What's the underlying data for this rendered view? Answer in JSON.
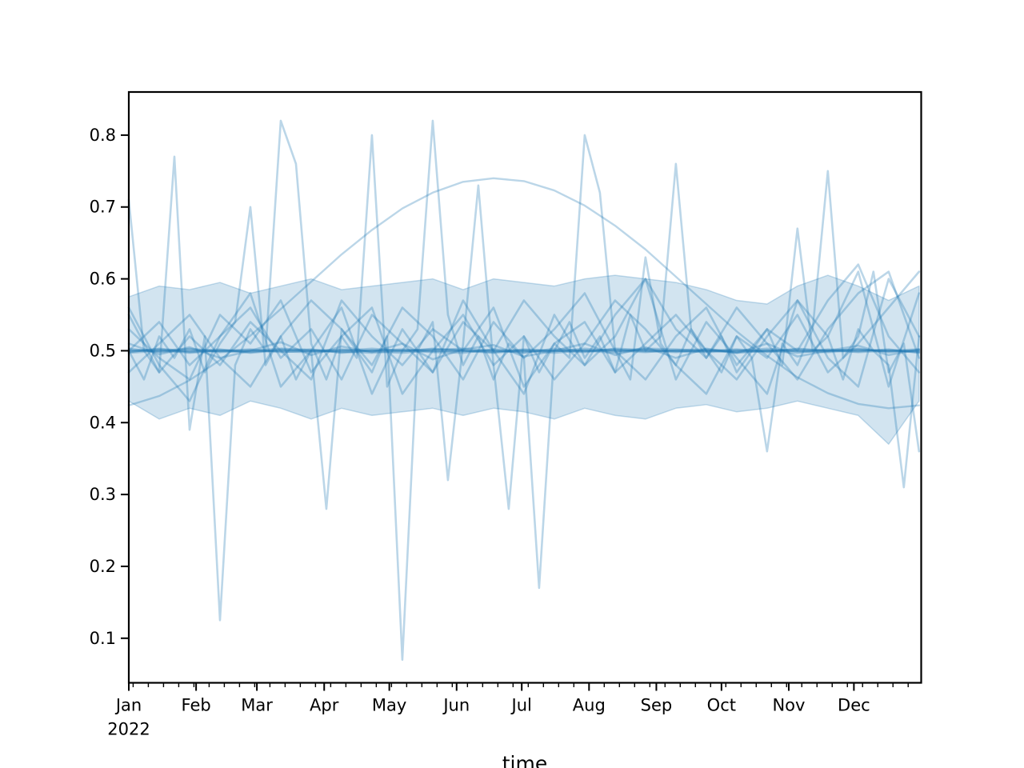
{
  "figure": {
    "background": "#ffffff",
    "axis_color": "#000000"
  },
  "chart_data": {
    "type": "line",
    "title": "",
    "xlabel": "time",
    "ylabel": "",
    "legend": "none",
    "grid": false,
    "description": "Spaghetti plot of many translucent blue time series over year 2022: a shaded uncertainty band around 0.5, several near-constant series at 0.5 forming a dark core line, volatile series with large spikes, and one smooth seasonal curve peaking near 0.74 in June.",
    "x_axis": {
      "kind": "date",
      "year_label": "2022",
      "month_labels": [
        "Jan",
        "Feb",
        "Mar",
        "Apr",
        "May",
        "Jun",
        "Jul",
        "Aug",
        "Sep",
        "Oct",
        "Nov",
        "Dec"
      ],
      "month_start_days": [
        0,
        31,
        59,
        90,
        120,
        151,
        181,
        212,
        243,
        273,
        304,
        334
      ],
      "range_days": [
        0,
        365
      ],
      "minor_tick_interval_days": 7,
      "minor_tick_phase_day": 2
    },
    "y_axis": {
      "ticks": [
        0.1,
        0.2,
        0.3,
        0.4,
        0.5,
        0.6,
        0.7,
        0.8
      ],
      "tick_decimals": 1,
      "range": [
        0.038,
        0.86
      ]
    },
    "colors": {
      "base_line": "#1f77b4",
      "line_alpha": 0.3,
      "band_fill_alpha": 0.2,
      "band_edge_alpha": 0.25
    },
    "days_weekly": [
      0,
      7,
      14,
      21,
      28,
      35,
      42,
      49,
      56,
      63,
      70,
      77,
      84,
      91,
      98,
      105,
      112,
      119,
      126,
      133,
      140,
      147,
      154,
      161,
      168,
      175,
      182,
      189,
      196,
      203,
      210,
      217,
      224,
      231,
      238,
      245,
      252,
      259,
      266,
      273,
      280,
      287,
      294,
      301,
      308,
      315,
      322,
      329,
      336,
      343,
      350,
      357,
      364
    ],
    "days_biweekly": [
      0,
      14,
      28,
      42,
      56,
      70,
      84,
      98,
      112,
      126,
      140,
      154,
      168,
      182,
      196,
      210,
      224,
      238,
      252,
      266,
      280,
      294,
      308,
      322,
      336,
      350,
      364
    ],
    "band": {
      "days_key": "days_biweekly",
      "upper": [
        0.575,
        0.59,
        0.585,
        0.595,
        0.58,
        0.59,
        0.6,
        0.585,
        0.59,
        0.595,
        0.6,
        0.585,
        0.6,
        0.595,
        0.59,
        0.6,
        0.605,
        0.6,
        0.595,
        0.585,
        0.57,
        0.565,
        0.59,
        0.605,
        0.59,
        0.57,
        0.59
      ],
      "lower": [
        0.43,
        0.405,
        0.42,
        0.41,
        0.43,
        0.42,
        0.405,
        0.42,
        0.41,
        0.415,
        0.42,
        0.41,
        0.42,
        0.415,
        0.405,
        0.42,
        0.41,
        0.405,
        0.42,
        0.425,
        0.415,
        0.42,
        0.43,
        0.42,
        0.41,
        0.37,
        0.43
      ]
    },
    "series": [
      {
        "name": "smooth-seasonal",
        "days_key": "days_biweekly",
        "width": 2.4,
        "values": [
          0.424,
          0.437,
          0.459,
          0.487,
          0.521,
          0.558,
          0.596,
          0.634,
          0.668,
          0.698,
          0.72,
          0.735,
          0.74,
          0.736,
          0.723,
          0.702,
          0.674,
          0.641,
          0.603,
          0.565,
          0.527,
          0.493,
          0.463,
          0.441,
          0.426,
          0.42,
          0.424
        ]
      },
      {
        "name": "volatile-1",
        "days_key": "days_weekly",
        "width": 2.6,
        "values": [
          0.71,
          0.5,
          0.47,
          0.77,
          0.39,
          0.52,
          0.125,
          0.48,
          0.53,
          0.5,
          0.82,
          0.76,
          0.51,
          0.46,
          0.52,
          0.49,
          0.8,
          0.45,
          0.5,
          0.53,
          0.82,
          0.55,
          0.48,
          0.52,
          0.46,
          0.51,
          0.49,
          0.17,
          0.5,
          0.54,
          0.49,
          0.52,
          0.47,
          0.55,
          0.5,
          0.52,
          0.76,
          0.53,
          0.49,
          0.52,
          0.47,
          0.5,
          0.53,
          0.48,
          0.67,
          0.5,
          0.52,
          0.46,
          0.53,
          0.5,
          0.48,
          0.31,
          0.52
        ]
      },
      {
        "name": "volatile-2",
        "days_key": "days_weekly",
        "width": 2.6,
        "values": [
          0.5,
          0.46,
          0.52,
          0.49,
          0.53,
          0.47,
          0.51,
          0.54,
          0.7,
          0.48,
          0.52,
          0.46,
          0.5,
          0.28,
          0.53,
          0.5,
          0.47,
          0.52,
          0.07,
          0.5,
          0.54,
          0.32,
          0.51,
          0.73,
          0.48,
          0.28,
          0.52,
          0.47,
          0.51,
          0.49,
          0.8,
          0.72,
          0.5,
          0.46,
          0.63,
          0.51,
          0.48,
          0.53,
          0.5,
          0.47,
          0.52,
          0.49,
          0.36,
          0.51,
          0.48,
          0.53,
          0.75,
          0.49,
          0.52,
          0.61,
          0.47,
          0.51,
          0.36
        ]
      },
      {
        "name": "volatile-3",
        "days_key": "days_biweekly",
        "width": 2.6,
        "values": [
          0.56,
          0.48,
          0.43,
          0.52,
          0.58,
          0.45,
          0.5,
          0.56,
          0.44,
          0.53,
          0.47,
          0.57,
          0.5,
          0.44,
          0.55,
          0.48,
          0.52,
          0.6,
          0.46,
          0.54,
          0.49,
          0.44,
          0.57,
          0.52,
          0.61,
          0.45,
          0.58
        ]
      },
      {
        "name": "medium-1",
        "days_key": "days_biweekly",
        "width": 2.6,
        "values": [
          0.5,
          0.54,
          0.48,
          0.52,
          0.56,
          0.49,
          0.53,
          0.46,
          0.55,
          0.51,
          0.47,
          0.54,
          0.5,
          0.57,
          0.52,
          0.48,
          0.55,
          0.6,
          0.53,
          0.49,
          0.56,
          0.51,
          0.46,
          0.53,
          0.58,
          0.61,
          0.49
        ]
      },
      {
        "name": "medium-2",
        "days_key": "days_biweekly",
        "width": 2.6,
        "values": [
          0.47,
          0.51,
          0.55,
          0.49,
          0.45,
          0.52,
          0.57,
          0.53,
          0.48,
          0.56,
          0.52,
          0.46,
          0.54,
          0.49,
          0.53,
          0.58,
          0.5,
          0.46,
          0.52,
          0.56,
          0.48,
          0.53,
          0.5,
          0.57,
          0.62,
          0.52,
          0.47
        ]
      },
      {
        "name": "medium-3",
        "days_key": "days_biweekly",
        "width": 2.6,
        "values": [
          0.53,
          0.49,
          0.46,
          0.55,
          0.51,
          0.57,
          0.47,
          0.52,
          0.56,
          0.44,
          0.5,
          0.55,
          0.48,
          0.52,
          0.46,
          0.51,
          0.57,
          0.53,
          0.48,
          0.44,
          0.52,
          0.49,
          0.55,
          0.47,
          0.51,
          0.56,
          0.61
        ]
      },
      {
        "name": "medium-4",
        "days_key": "days_biweekly",
        "width": 2.6,
        "values": [
          0.55,
          0.47,
          0.52,
          0.48,
          0.54,
          0.5,
          0.46,
          0.57,
          0.52,
          0.48,
          0.53,
          0.5,
          0.56,
          0.45,
          0.51,
          0.54,
          0.47,
          0.51,
          0.55,
          0.5,
          0.46,
          0.52,
          0.57,
          0.49,
          0.45,
          0.6,
          0.52
        ]
      },
      {
        "name": "stable-1",
        "days_key": "days_biweekly",
        "width": 2.6,
        "values": [
          0.5,
          0.502,
          0.498,
          0.501,
          0.499,
          0.5,
          0.502,
          0.497,
          0.5,
          0.501,
          0.499,
          0.5,
          0.498,
          0.502,
          0.5,
          0.499,
          0.501,
          0.5,
          0.498,
          0.5,
          0.502,
          0.499,
          0.5,
          0.501,
          0.498,
          0.5,
          0.499
        ]
      },
      {
        "name": "stable-2",
        "days_key": "days_biweekly",
        "width": 2.6,
        "values": [
          0.497,
          0.5,
          0.503,
          0.499,
          0.501,
          0.498,
          0.5,
          0.502,
          0.499,
          0.497,
          0.501,
          0.503,
          0.5,
          0.498,
          0.501,
          0.5,
          0.497,
          0.502,
          0.5,
          0.499,
          0.501,
          0.498,
          0.503,
          0.5,
          0.502,
          0.499,
          0.501
        ]
      },
      {
        "name": "stable-3",
        "days_key": "days_biweekly",
        "width": 2.6,
        "values": [
          0.503,
          0.498,
          0.5,
          0.502,
          0.497,
          0.501,
          0.499,
          0.5,
          0.503,
          0.5,
          0.498,
          0.497,
          0.502,
          0.5,
          0.499,
          0.503,
          0.5,
          0.498,
          0.501,
          0.502,
          0.498,
          0.5,
          0.497,
          0.502,
          0.5,
          0.501,
          0.498
        ]
      },
      {
        "name": "stable-4",
        "days_key": "days_biweekly",
        "width": 2.6,
        "values": [
          0.499,
          0.501,
          0.497,
          0.5,
          0.502,
          0.499,
          0.498,
          0.501,
          0.5,
          0.502,
          0.5,
          0.499,
          0.501,
          0.497,
          0.503,
          0.5,
          0.502,
          0.499,
          0.5,
          0.498,
          0.5,
          0.503,
          0.499,
          0.498,
          0.501,
          0.5,
          0.502
        ]
      },
      {
        "name": "stable-5",
        "days_key": "days_biweekly",
        "width": 2.6,
        "values": [
          0.501,
          0.499,
          0.502,
          0.498,
          0.5,
          0.503,
          0.501,
          0.499,
          0.497,
          0.5,
          0.502,
          0.501,
          0.499,
          0.5,
          0.497,
          0.501,
          0.499,
          0.503,
          0.502,
          0.5,
          0.499,
          0.501,
          0.5,
          0.499,
          0.503,
          0.498,
          0.5
        ]
      },
      {
        "name": "stable-6",
        "days_key": "days_biweekly",
        "width": 2.6,
        "values": [
          0.498,
          0.503,
          0.499,
          0.5,
          0.498,
          0.502,
          0.5,
          0.498,
          0.501,
          0.499,
          0.503,
          0.5,
          0.497,
          0.501,
          0.5,
          0.498,
          0.503,
          0.501,
          0.499,
          0.501,
          0.497,
          0.5,
          0.502,
          0.5,
          0.499,
          0.502,
          0.497
        ]
      },
      {
        "name": "stable-7",
        "days_key": "days_biweekly",
        "width": 2.6,
        "values": [
          0.51,
          0.495,
          0.505,
          0.49,
          0.5,
          0.512,
          0.494,
          0.506,
          0.498,
          0.51,
          0.488,
          0.502,
          0.508,
          0.492,
          0.5,
          0.51,
          0.494,
          0.505,
          0.49,
          0.503,
          0.497,
          0.51,
          0.492,
          0.5,
          0.507,
          0.494,
          0.502
        ]
      }
    ]
  }
}
